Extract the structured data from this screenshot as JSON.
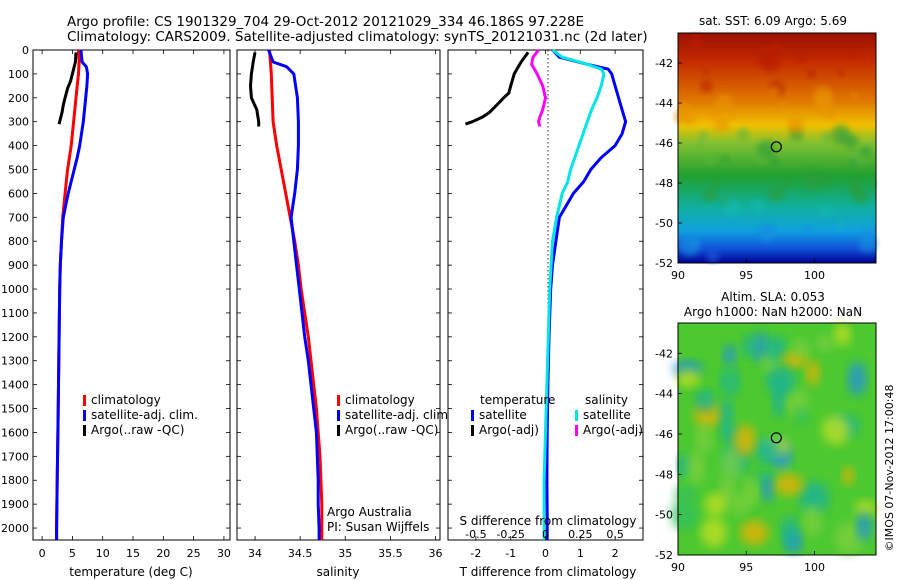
{
  "header": {
    "line1": "Argo profile: CS 1901329_704 29-Oct-2012 20121029_334 46.186S 97.228E",
    "line2": "Climatology: CARS2009. Satellite-adjusted climatology: synTS_20121031.nc (2d later)"
  },
  "depth_axis": {
    "ticks": [
      0,
      100,
      200,
      300,
      400,
      500,
      600,
      700,
      800,
      900,
      1000,
      1100,
      1200,
      1300,
      1400,
      1500,
      1600,
      1700,
      1800,
      1900,
      2000
    ],
    "range": [
      0,
      2050
    ],
    "inverted": true
  },
  "colors": {
    "climatology": "#ff0000",
    "satellite": "#0000ff",
    "argo": "#000000",
    "sat_salinity": "#00e5e5",
    "argo_salinity": "#ff00ff"
  },
  "temperature_panel": {
    "xlabel": "temperature (deg C)",
    "xticks": [
      0,
      5,
      10,
      15,
      20,
      25,
      30
    ],
    "xlim": [
      -1.5,
      31
    ],
    "legend": [
      {
        "label": "climatology",
        "color": "#ff0000"
      },
      {
        "label": "satellite-adj. clim.",
        "color": "#0000ff"
      },
      {
        "label": "Argo(..raw -QC)",
        "color": "#000000"
      }
    ]
  },
  "salinity_panel": {
    "xlabel": "salinity",
    "xticks": [
      "34",
      "34.5",
      "35",
      "35.5",
      "36"
    ],
    "xlim": [
      33.8,
      36.05
    ],
    "legend": [
      {
        "label": "climatology",
        "color": "#ff0000"
      },
      {
        "label": "satellite-adj. clim.",
        "color": "#0000ff"
      },
      {
        "label": "Argo(..raw -QC)",
        "color": "#000000"
      }
    ],
    "note_line1": "Argo Australia",
    "note_line2": "PI: Susan Wijffels"
  },
  "diff_panel": {
    "xlabel": "T difference from climatology",
    "top_label": "S difference from climatology",
    "xticks_T": [
      "-2",
      "-1",
      "0",
      "1",
      "2"
    ],
    "xlim_T": [
      -2.8,
      2.8
    ],
    "xticks_S": [
      "-0.5",
      "-0.25",
      "0",
      "0.25",
      "0.5"
    ],
    "legend_temperature_title": "temperature",
    "legend_salinity_title": "salinity",
    "legend_temperature": [
      {
        "label": "satellite",
        "color": "#0000ff"
      },
      {
        "label": "Argo(-adj)",
        "color": "#000000"
      }
    ],
    "legend_salinity": [
      {
        "label": "satellite",
        "color": "#00e5e5"
      },
      {
        "label": "Argo(-adj)",
        "color": "#ff00ff"
      }
    ]
  },
  "map_sst": {
    "title": "sat. SST: 6.09  Argo: 5.69",
    "yticks": [
      "-42",
      "-44",
      "-46",
      "-48",
      "-50",
      "-52"
    ],
    "xticks": [
      "90",
      "95",
      "100"
    ],
    "float_position": {
      "lon": 97.2,
      "lat": -46.19
    }
  },
  "map_sla": {
    "title_line1": "Altim. SLA: 0.053",
    "title_line2": "Argo h1000: NaN h2000: NaN",
    "yticks": [
      "-42",
      "-44",
      "-46",
      "-48",
      "-50",
      "-52"
    ],
    "xticks": [
      "90",
      "95",
      "100"
    ],
    "float_position": {
      "lon": 97.2,
      "lat": -46.19
    }
  },
  "side_stamp": "©IMOS 07-Nov-2012 17:00:48",
  "chart_data": [
    {
      "type": "line",
      "title": "",
      "xlabel": "temperature (deg C)",
      "ylabel": "",
      "xlim": [
        -1.5,
        31
      ],
      "ylim": [
        2050,
        0
      ],
      "series": [
        {
          "name": "climatology",
          "color": "#ff0000",
          "depth": [
            0,
            50,
            100,
            150,
            200,
            250,
            300,
            350,
            400,
            450,
            500,
            550,
            600,
            650,
            700,
            800,
            900,
            1000,
            1200,
            1400,
            1600,
            1800,
            2000,
            2050
          ],
          "values": [
            6.0,
            6.1,
            6.0,
            5.8,
            5.6,
            5.4,
            5.2,
            5.0,
            4.8,
            4.5,
            4.2,
            4.0,
            3.8,
            3.6,
            3.4,
            3.2,
            3.0,
            2.9,
            2.8,
            2.7,
            2.6,
            2.5,
            2.4,
            2.4
          ]
        },
        {
          "name": "satellite-adj. clim.",
          "color": "#0000ff",
          "depth": [
            0,
            50,
            70,
            100,
            150,
            200,
            250,
            300,
            350,
            400,
            450,
            500,
            550,
            600,
            650,
            700,
            800,
            900,
            1000,
            1200,
            1400,
            1600,
            1800,
            2000,
            2050
          ],
          "values": [
            6.4,
            6.6,
            7.3,
            7.5,
            7.4,
            7.2,
            7.0,
            6.8,
            6.5,
            6.2,
            5.8,
            5.3,
            4.8,
            4.3,
            3.9,
            3.5,
            3.2,
            3.0,
            2.9,
            2.8,
            2.7,
            2.6,
            2.5,
            2.4,
            2.4
          ]
        },
        {
          "name": "Argo(..raw -QC)",
          "color": "#000000",
          "depth": [
            10,
            50,
            100,
            130,
            160,
            200,
            230,
            260,
            290,
            310
          ],
          "values": [
            5.6,
            5.5,
            5.0,
            4.7,
            4.2,
            3.8,
            3.5,
            3.3,
            3.0,
            2.8
          ]
        }
      ]
    },
    {
      "type": "line",
      "title": "",
      "xlabel": "salinity",
      "ylabel": "",
      "xlim": [
        33.8,
        36.05
      ],
      "ylim": [
        2050,
        0
      ],
      "series": [
        {
          "name": "climatology",
          "color": "#ff0000",
          "depth": [
            0,
            50,
            100,
            200,
            300,
            400,
            500,
            600,
            700,
            800,
            900,
            1000,
            1100,
            1200,
            1300,
            1400,
            1500,
            1600,
            1700,
            1800,
            1900,
            2000,
            2050
          ],
          "values": [
            34.16,
            34.17,
            34.18,
            34.19,
            34.2,
            34.24,
            34.29,
            34.34,
            34.39,
            34.44,
            34.48,
            34.51,
            34.55,
            34.59,
            34.62,
            34.65,
            34.68,
            34.7,
            34.72,
            34.73,
            34.74,
            34.74,
            34.74
          ]
        },
        {
          "name": "satellite-adj. clim.",
          "color": "#0000ff",
          "depth": [
            0,
            50,
            70,
            100,
            200,
            300,
            400,
            500,
            600,
            700,
            800,
            900,
            1000,
            1100,
            1200,
            1300,
            1400,
            1500,
            1600,
            1700,
            1800,
            1900,
            2000,
            2050
          ],
          "values": [
            34.15,
            34.2,
            34.35,
            34.43,
            34.47,
            34.48,
            34.48,
            34.47,
            34.44,
            34.4,
            34.43,
            34.46,
            34.49,
            34.52,
            34.55,
            34.59,
            34.62,
            34.65,
            34.68,
            34.69,
            34.7,
            34.7,
            34.71,
            34.71
          ]
        },
        {
          "name": "Argo(..raw -QC)",
          "color": "#000000",
          "depth": [
            10,
            50,
            100,
            150,
            200,
            250,
            300,
            320
          ],
          "values": [
            34.0,
            33.98,
            33.96,
            33.95,
            33.96,
            34.02,
            34.04,
            34.04
          ]
        }
      ]
    },
    {
      "type": "line",
      "title": "",
      "xlabel": "T difference from climatology",
      "ylabel": "",
      "xlim": [
        -2.8,
        2.8
      ],
      "ylim": [
        2050,
        0
      ],
      "series": [
        {
          "name": "temperature satellite",
          "color": "#0000ff",
          "depth": [
            0,
            30,
            60,
            80,
            100,
            150,
            200,
            250,
            300,
            350,
            400,
            450,
            500,
            550,
            600,
            650,
            700,
            800,
            900,
            1000,
            1200,
            1400,
            1600,
            1800,
            1950,
            2050
          ],
          "values": [
            0.2,
            0.4,
            1.2,
            1.8,
            1.9,
            2.0,
            2.1,
            2.2,
            2.3,
            2.2,
            2.0,
            1.6,
            1.3,
            1.1,
            0.8,
            0.6,
            0.4,
            0.3,
            0.2,
            0.15,
            0.1,
            0.07,
            0.05,
            0.04,
            0.05,
            0.05
          ]
        },
        {
          "name": "temperature Argo(-adj)",
          "color": "#000000",
          "depth": [
            10,
            50,
            100,
            150,
            180,
            200,
            230,
            260,
            280,
            300,
            310
          ],
          "values": [
            -0.5,
            -0.7,
            -0.9,
            -1.0,
            -1.05,
            -1.2,
            -1.4,
            -1.6,
            -1.8,
            -2.1,
            -2.3
          ]
        },
        {
          "name": "salinity satellite",
          "color": "#00e5e5",
          "depth": [
            0,
            30,
            60,
            80,
            100,
            150,
            200,
            250,
            300,
            350,
            400,
            450,
            500,
            550,
            600,
            700,
            800,
            900,
            1000,
            1200,
            1400,
            1600,
            1800,
            2000,
            2050
          ],
          "values": [
            0.05,
            0.12,
            0.3,
            0.4,
            0.42,
            0.4,
            0.37,
            0.33,
            0.3,
            0.27,
            0.24,
            0.21,
            0.18,
            0.16,
            0.12,
            0.08,
            0.05,
            0.04,
            0.03,
            0.02,
            0.01,
            0.0,
            -0.01,
            -0.01,
            -0.01
          ]
        },
        {
          "name": "salinity Argo(-adj)",
          "color": "#ff00ff",
          "depth": [
            0,
            30,
            60,
            100,
            150,
            200,
            250,
            280,
            300,
            320
          ],
          "values": [
            -0.05,
            -0.09,
            -0.1,
            -0.06,
            -0.02,
            0.0,
            -0.02,
            -0.04,
            -0.05,
            -0.04
          ]
        }
      ]
    }
  ]
}
